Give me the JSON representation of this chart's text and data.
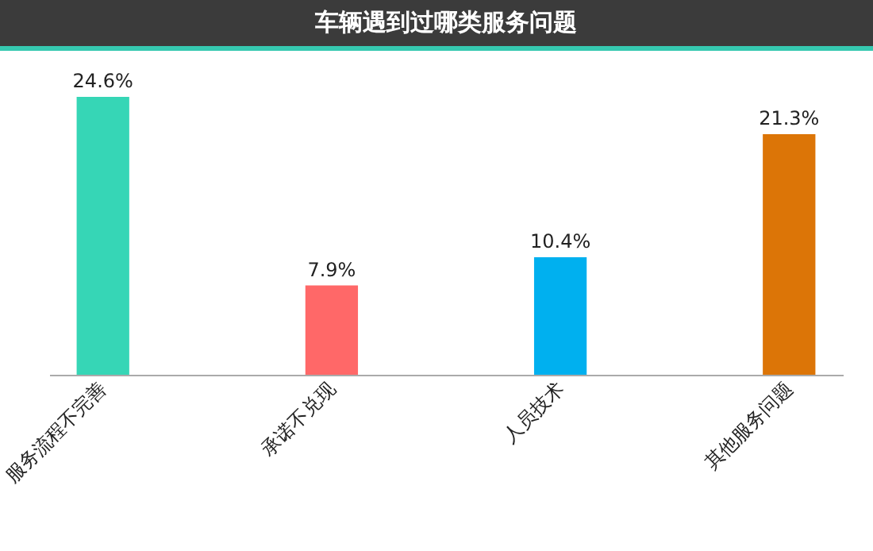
{
  "chart_data": {
    "type": "bar",
    "title": "车辆遇到过哪类服务问题",
    "categories": [
      "服务流程不完善",
      "承诺不兑现",
      "人员技术",
      "其他服务问题"
    ],
    "values": [
      24.6,
      7.9,
      10.4,
      21.3
    ],
    "colors": [
      "#36d6b6",
      "#ff6868",
      "#00b0ef",
      "#dc7507"
    ],
    "value_labels": [
      "24.6%",
      "7.9%",
      "10.4%",
      "21.3%"
    ]
  }
}
